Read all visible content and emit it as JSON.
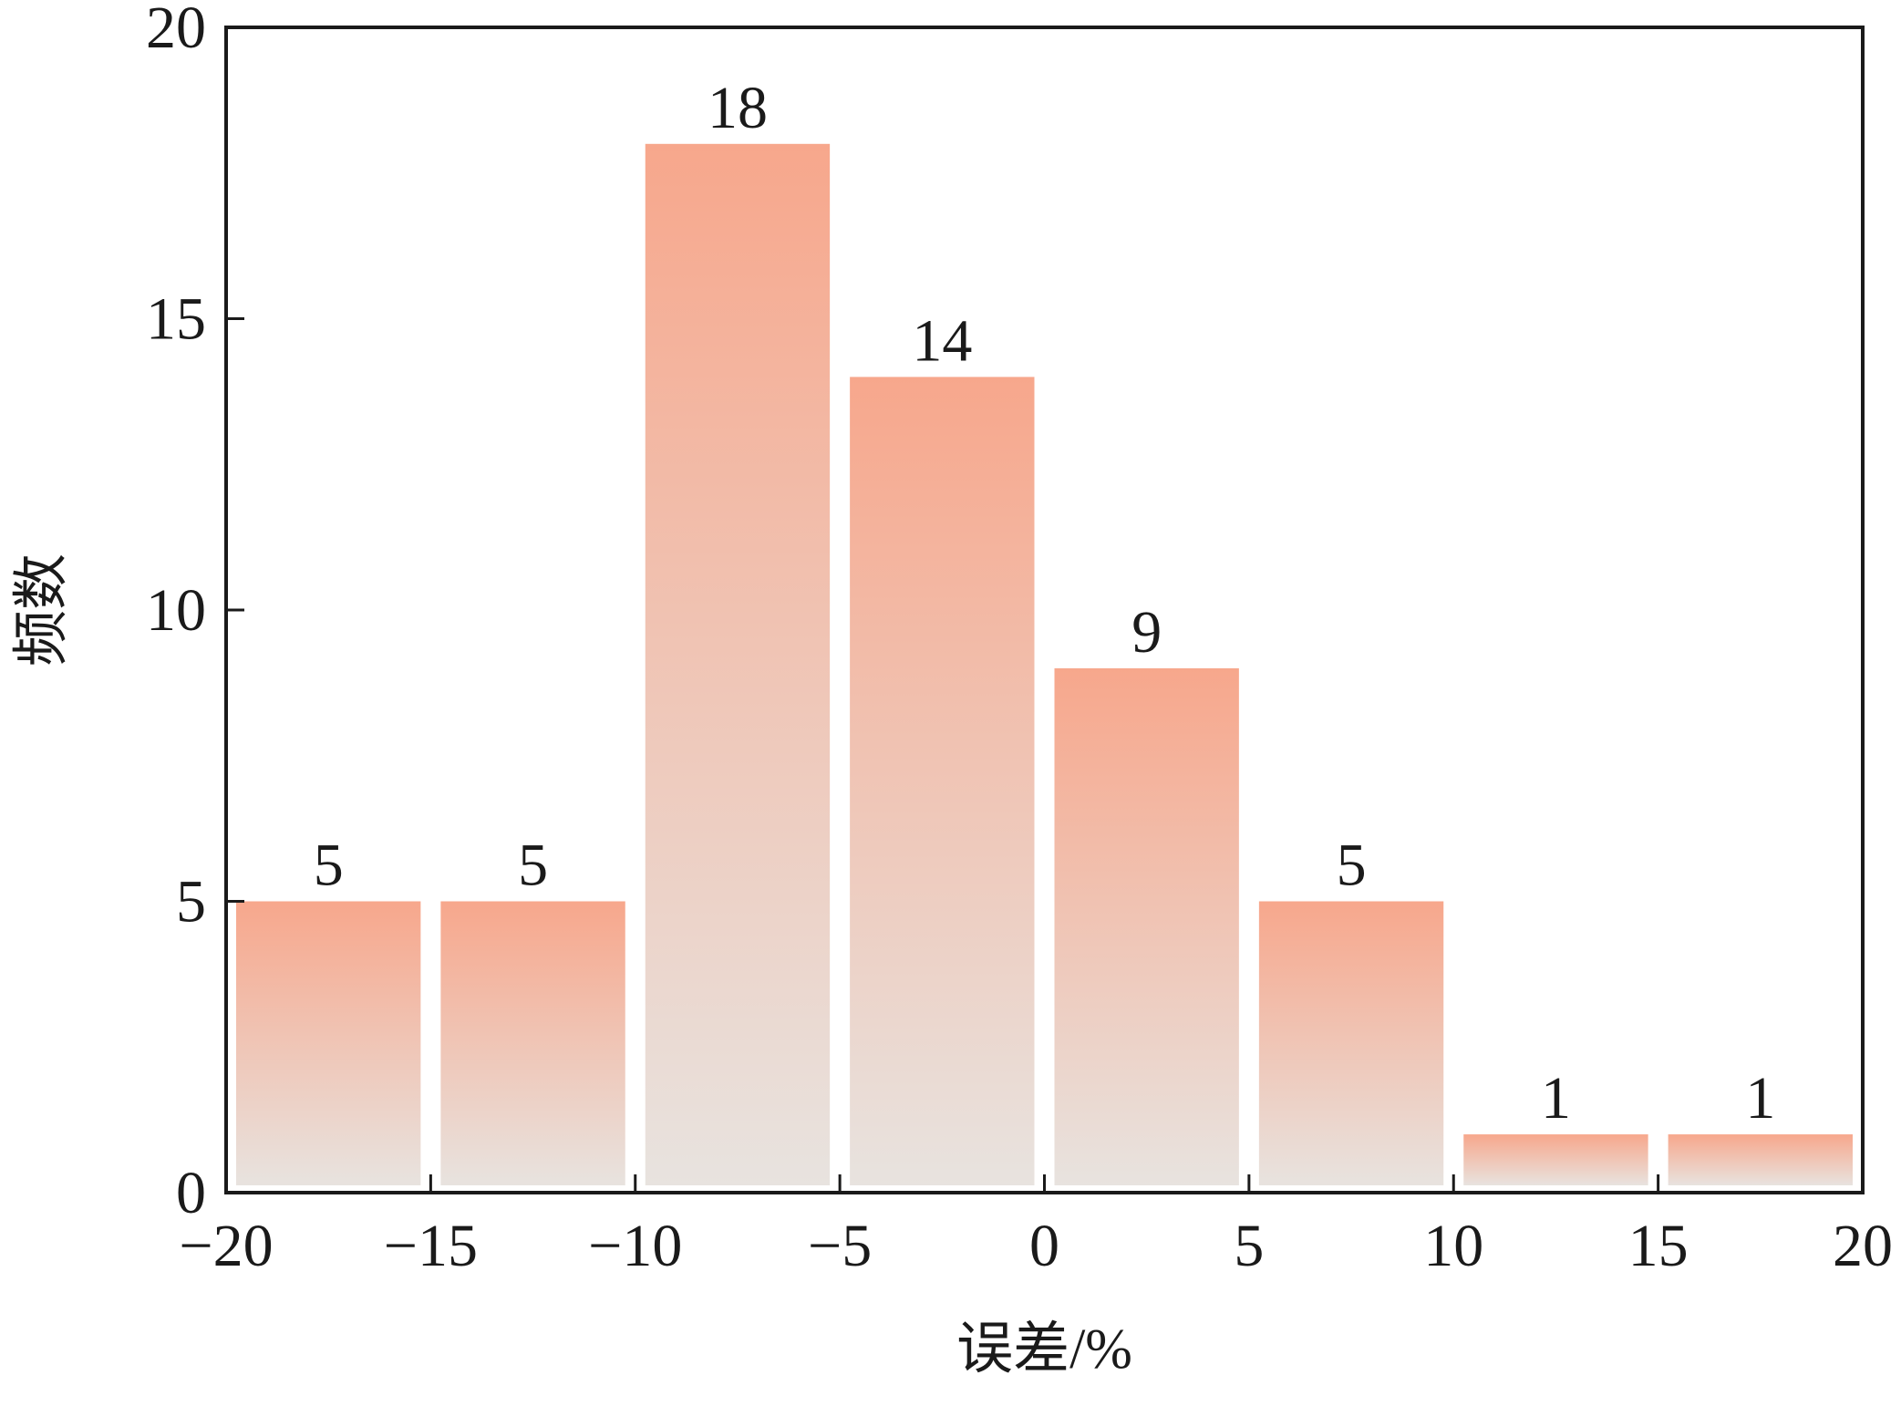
{
  "chart_data": {
    "type": "bar",
    "bins": [
      {
        "x0": -20,
        "x1": -15,
        "value": 5,
        "label": "5"
      },
      {
        "x0": -15,
        "x1": -10,
        "value": 5,
        "label": "5"
      },
      {
        "x0": -10,
        "x1": -5,
        "value": 18,
        "label": "18"
      },
      {
        "x0": -5,
        "x1": 0,
        "value": 14,
        "label": "14"
      },
      {
        "x0": 0,
        "x1": 5,
        "value": 9,
        "label": "9"
      },
      {
        "x0": 5,
        "x1": 10,
        "value": 5,
        "label": "5"
      },
      {
        "x0": 10,
        "x1": 15,
        "value": 1,
        "label": "1"
      },
      {
        "x0": 15,
        "x1": 20,
        "value": 1,
        "label": "1"
      }
    ],
    "xlabel": "误差/%",
    "ylabel": "频数",
    "xlim": [
      -20,
      20
    ],
    "ylim": [
      0,
      20
    ],
    "xticks": [
      -20,
      -15,
      -10,
      -5,
      0,
      5,
      10,
      15,
      20
    ],
    "xtick_labels": [
      "−20",
      "−15",
      "−10",
      "−5",
      "0",
      "5",
      "10",
      "15",
      "20"
    ],
    "yticks": [
      0,
      5,
      10,
      15,
      20
    ],
    "ytick_labels": [
      "0",
      "5",
      "10",
      "15",
      "20"
    ],
    "grid": false,
    "colors": {
      "bar_top": "#f7a78c",
      "bar_bottom": "#e8e3df",
      "axis": "#1a1a1a"
    }
  }
}
